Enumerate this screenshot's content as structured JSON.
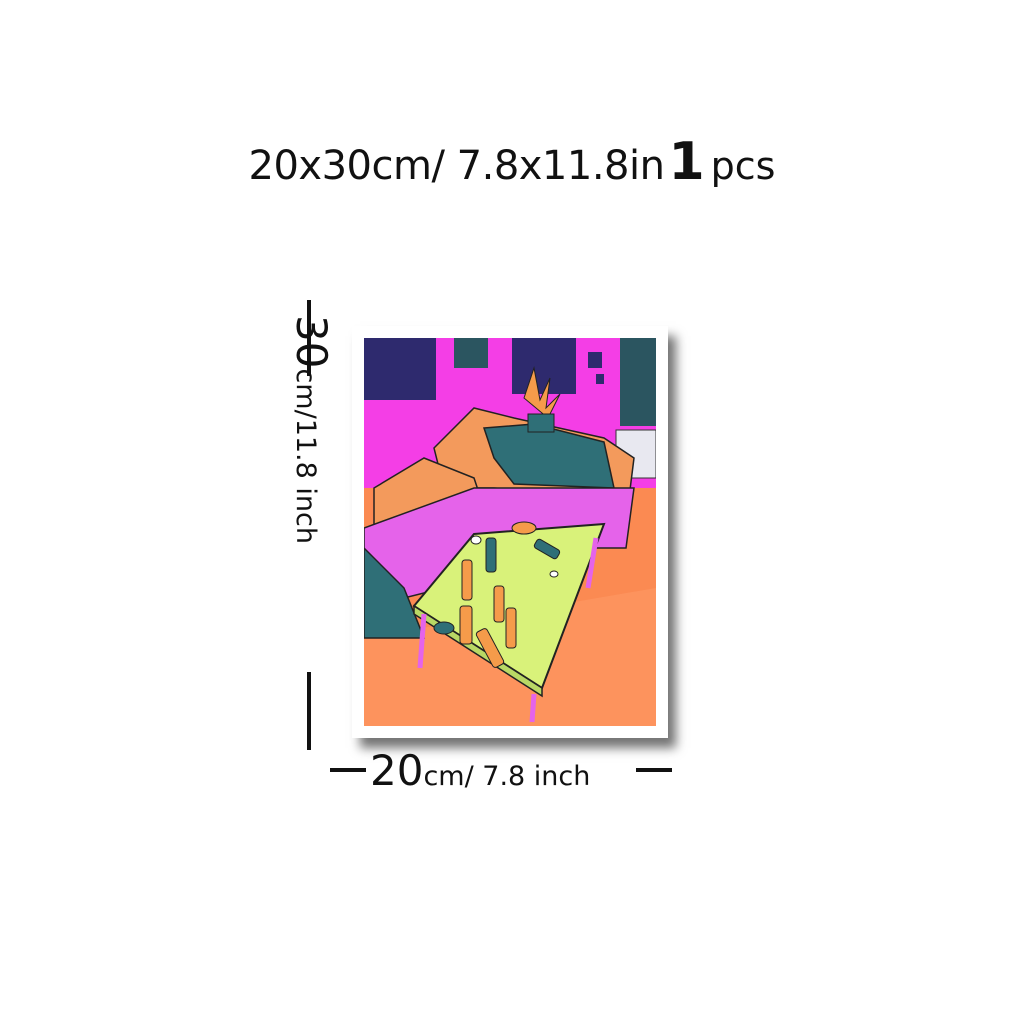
{
  "headline": {
    "size": "20x30cm/ 7.8x11.8in",
    "quantity": "1",
    "unit": "pcs"
  },
  "dimensions": {
    "height_value": "30",
    "height_unit": "cm/11.8 inch",
    "width_value": "20",
    "width_unit": "cm/ 7.8 inch"
  },
  "colors": {
    "wall_pink": "#f43ee6",
    "floor_orange": "#fb8a52",
    "table_green": "#d9f27a",
    "sofa_teal": "#2f6f77",
    "window_dark": "#2e2a6e"
  }
}
